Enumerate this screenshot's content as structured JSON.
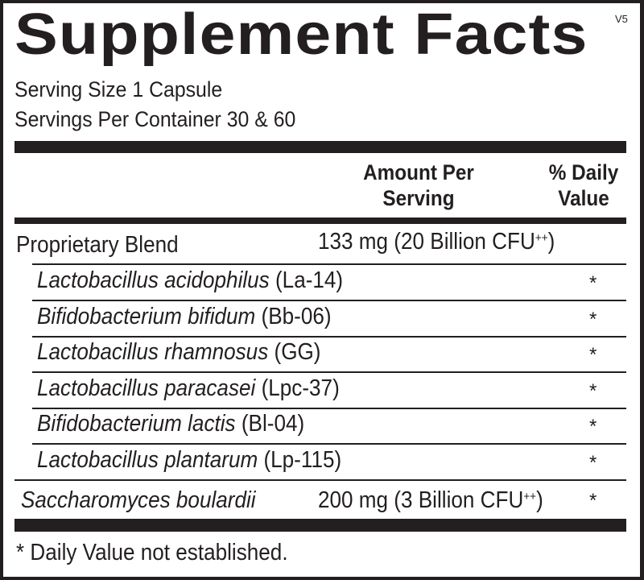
{
  "title": "Supplement Facts",
  "version": "V5",
  "serving_size": "Serving Size 1 Capsule",
  "servings_per_container": "Servings Per Container 30 & 60",
  "header": {
    "amount_line1": "Amount Per",
    "amount_line2": "Serving",
    "dv_line1": "% Daily",
    "dv_line2": "Value"
  },
  "blend": {
    "name": "Proprietary Blend",
    "amount": "133 mg (20 Billion CFU",
    "sup": "++",
    ")": ")"
  },
  "strains": [
    {
      "name": "Lactobacillus acidophilus",
      "code": " (La-14)",
      "dv": "*"
    },
    {
      "name": "Bifidobacterium bifidum",
      "code": " (Bb-06)",
      "dv": "*"
    },
    {
      "name": "Lactobacillus rhamnosus",
      "code": " (GG)",
      "dv": "*"
    },
    {
      "name": "Lactobacillus paracasei",
      "code": " (Lpc-37)",
      "dv": "*"
    },
    {
      "name": "Bifidobacterium lactis",
      "code": " (Bl-04)",
      "dv": "*"
    },
    {
      "name": "Lactobacillus plantarum",
      "code": " (Lp-115)",
      "dv": "*"
    }
  ],
  "sacch": {
    "name": "Saccharomyces boulardii",
    "amount": "200 mg (3 Billion CFU",
    "sup": "++",
    "close": ")",
    "dv": "*"
  },
  "footnote": "* Daily Value not established."
}
